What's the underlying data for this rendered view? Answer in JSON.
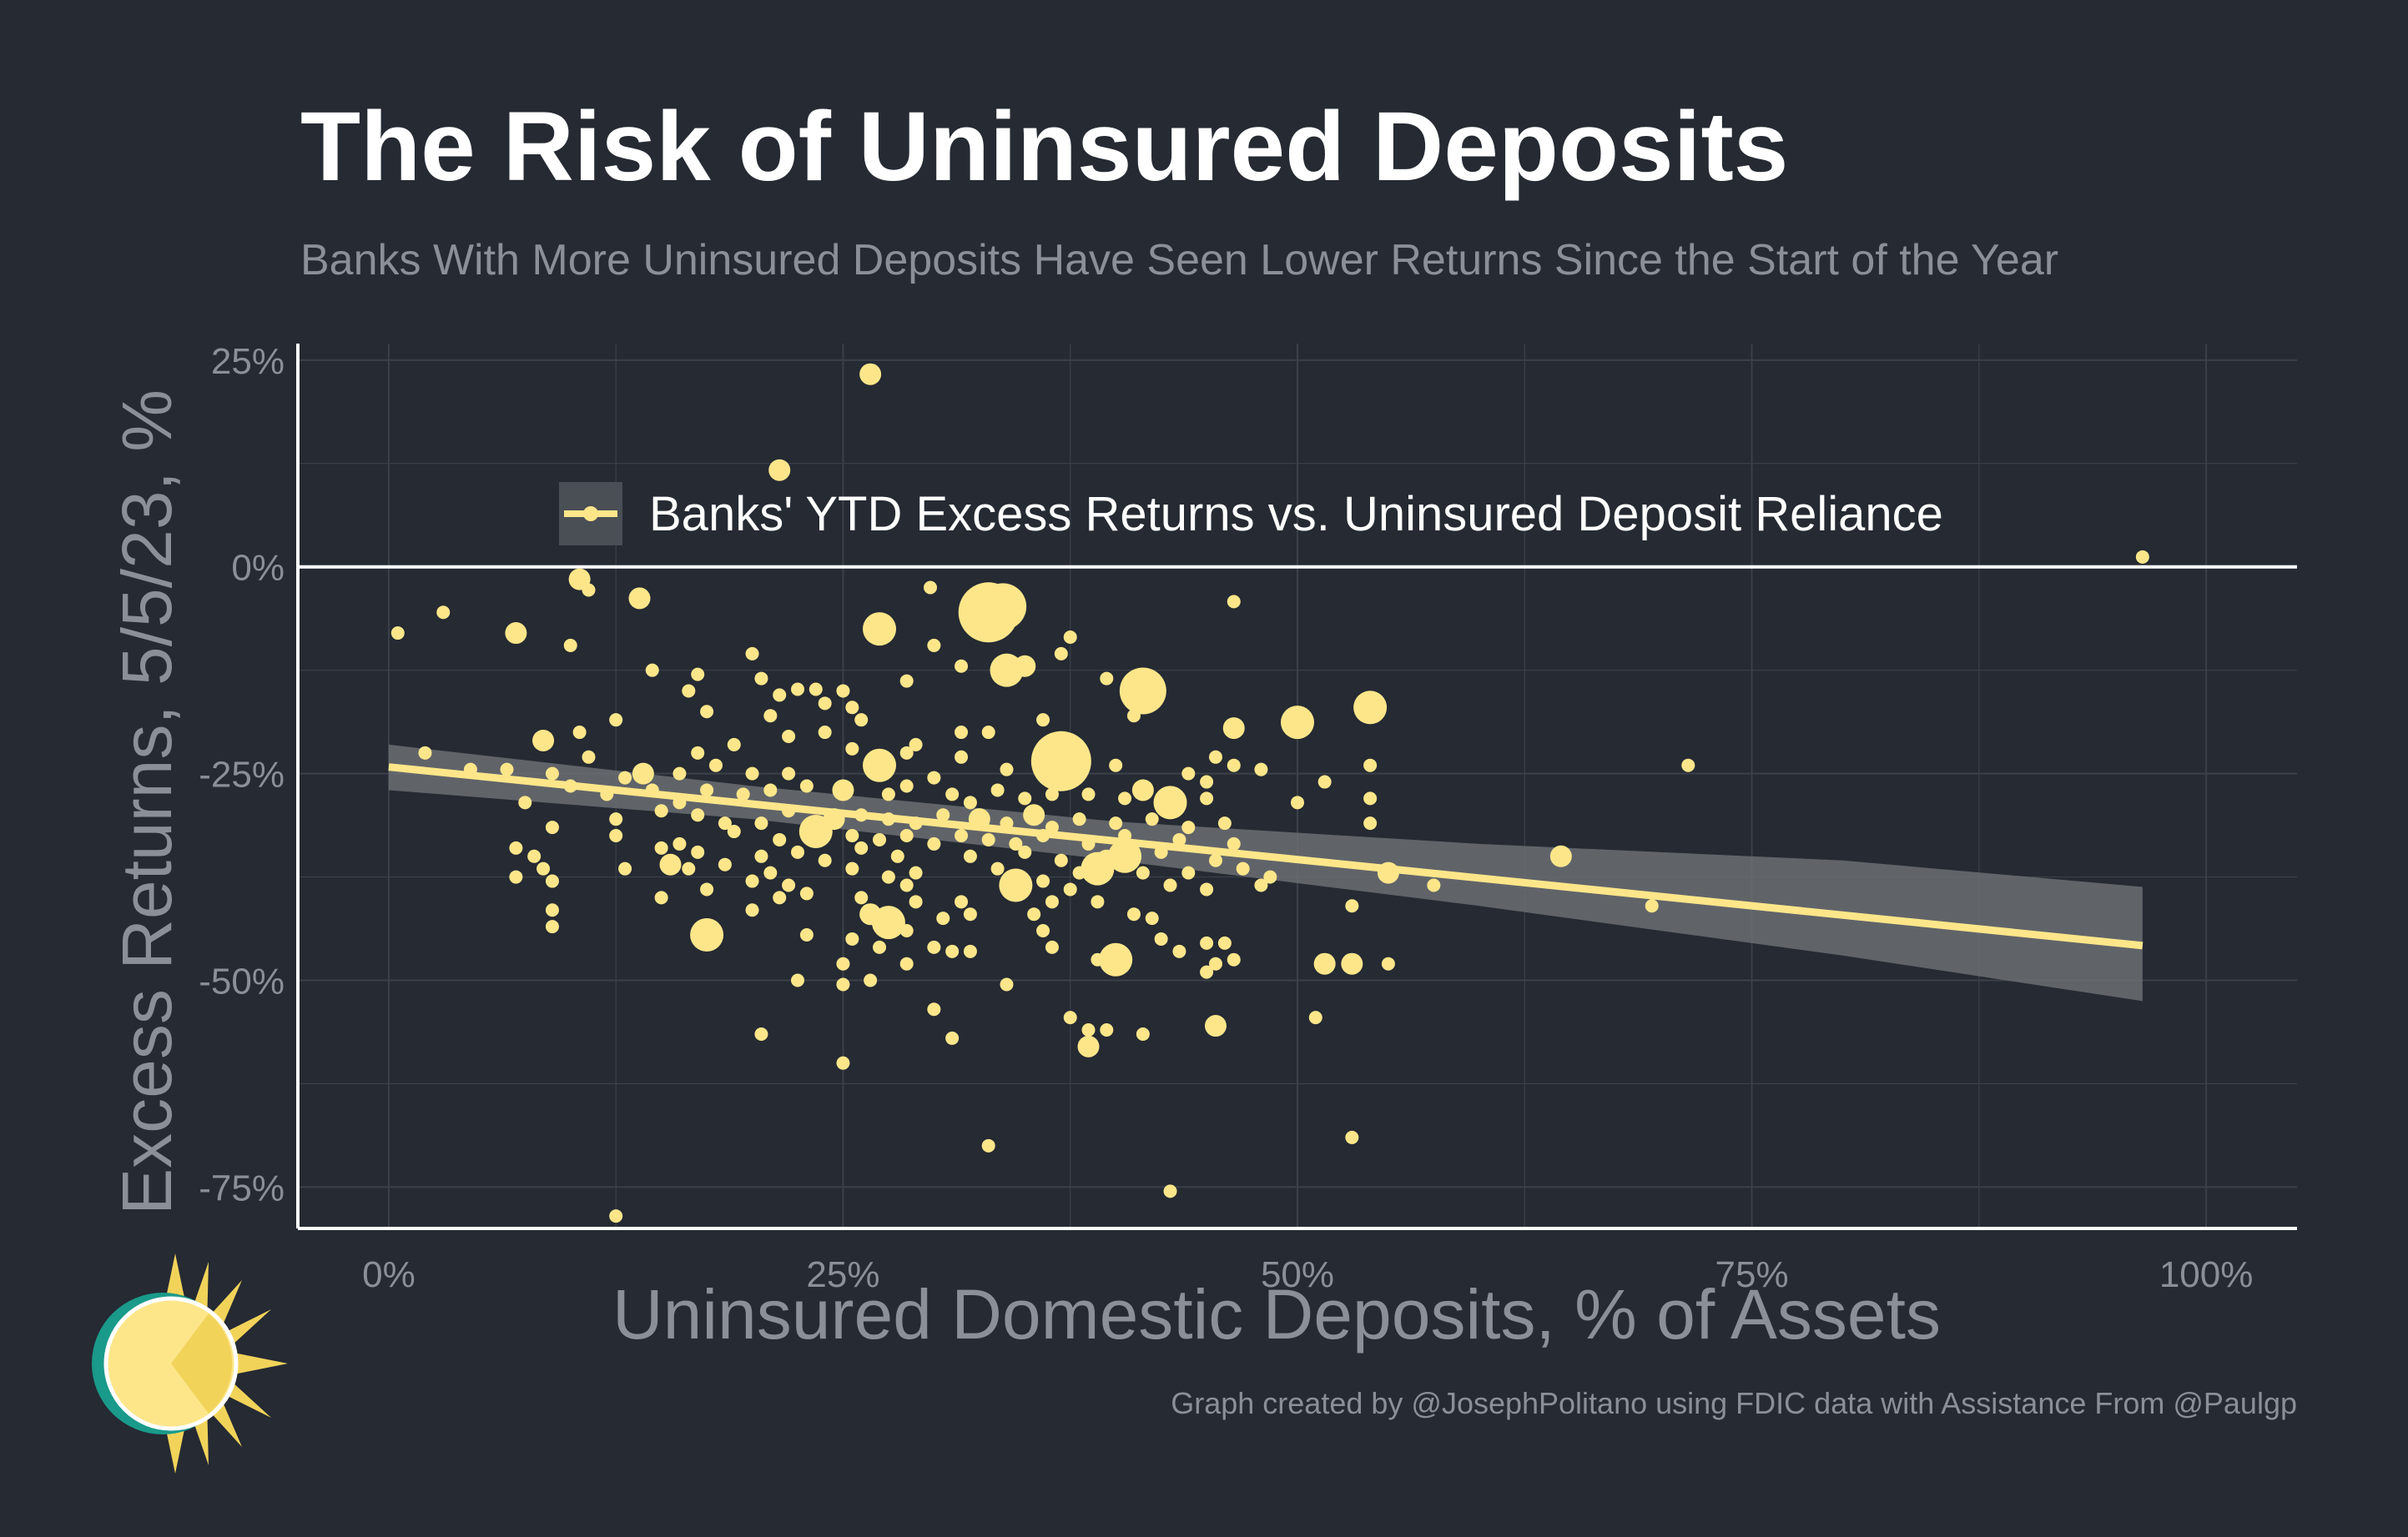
{
  "title": "The Risk of Uninsured Deposits",
  "subtitle": "Banks With More Uninsured Deposits Have Seen Lower Returns Since the Start of the Year",
  "credit": "Graph created by @JosephPolitano using FDIC data with Assistance From @Paulgp",
  "colors": {
    "background": "#252a33",
    "points": "#fde68a",
    "trend": "#fde68a",
    "band": "#6b6e73",
    "axis": "#ffffff",
    "grid": "#3c4149",
    "text_muted": "#8b8f97"
  },
  "chart_data": {
    "type": "scatter",
    "xlabel": "Uninsured Domestic Deposits, % of Assets",
    "ylabel": "Excess Returns, 5/5/23, %",
    "xlim": [
      -5,
      105
    ],
    "ylim": [
      -80,
      27
    ],
    "x_ticks": [
      0,
      25,
      50,
      75,
      100
    ],
    "x_tick_labels": [
      "0%",
      "25%",
      "50%",
      "75%",
      "100%"
    ],
    "y_ticks": [
      25,
      0,
      -25,
      -50,
      -75
    ],
    "y_tick_labels": [
      "25%",
      "0%",
      "-25%",
      "-50%",
      "-75%"
    ],
    "legend": {
      "label": "Banks' YTD Excess Returns vs. Uninsured Deposit Reliance",
      "position": "top-center"
    },
    "trend": {
      "x": [
        0,
        96.5
      ],
      "y": [
        -24.2,
        -45.8
      ]
    },
    "band": {
      "x": [
        0,
        20,
        40,
        60,
        80,
        96.5
      ],
      "upper": [
        -21.5,
        -26.5,
        -30.8,
        -33.5,
        -35.5,
        -38.7
      ],
      "lower": [
        -27.0,
        -30.5,
        -35.5,
        -41.0,
        -47.0,
        -52.5
      ]
    },
    "points": [
      {
        "x": 26.5,
        "y": 23.3,
        "s": 2
      },
      {
        "x": 21.5,
        "y": 11.7,
        "s": 2
      },
      {
        "x": 96.5,
        "y": 1.2,
        "s": 1
      },
      {
        "x": 10.5,
        "y": -1.5,
        "s": 2
      },
      {
        "x": 11.0,
        "y": -2.8,
        "s": 1
      },
      {
        "x": 13.8,
        "y": -3.8,
        "s": 2
      },
      {
        "x": 29.8,
        "y": -2.5,
        "s": 1
      },
      {
        "x": 46.5,
        "y": -4.2,
        "s": 1
      },
      {
        "x": 33.0,
        "y": -5.5,
        "s": 5
      },
      {
        "x": 33.8,
        "y": -4.8,
        "s": 4
      },
      {
        "x": 0.5,
        "y": -8.0,
        "s": 1
      },
      {
        "x": 3.0,
        "y": -5.5,
        "s": 1
      },
      {
        "x": 7.0,
        "y": -8.0,
        "s": 2
      },
      {
        "x": 10.0,
        "y": -9.5,
        "s": 1
      },
      {
        "x": 27.0,
        "y": -7.5,
        "s": 3
      },
      {
        "x": 30.0,
        "y": -9.5,
        "s": 1
      },
      {
        "x": 37.5,
        "y": -8.5,
        "s": 1
      },
      {
        "x": 37.0,
        "y": -10.5,
        "s": 1
      },
      {
        "x": 20.0,
        "y": -10.5,
        "s": 1
      },
      {
        "x": 31.5,
        "y": -12.0,
        "s": 1
      },
      {
        "x": 34.0,
        "y": -12.5,
        "s": 3
      },
      {
        "x": 35.0,
        "y": -12.0,
        "s": 2
      },
      {
        "x": 14.5,
        "y": -12.5,
        "s": 1
      },
      {
        "x": 17.0,
        "y": -13.0,
        "s": 1
      },
      {
        "x": 20.5,
        "y": -13.5,
        "s": 1
      },
      {
        "x": 22.5,
        "y": -14.8,
        "s": 1
      },
      {
        "x": 23.5,
        "y": -14.8,
        "s": 1
      },
      {
        "x": 28.5,
        "y": -13.8,
        "s": 1
      },
      {
        "x": 39.5,
        "y": -13.5,
        "s": 1
      },
      {
        "x": 41.5,
        "y": -15.0,
        "s": 4
      },
      {
        "x": 41.0,
        "y": -18.0,
        "s": 1
      },
      {
        "x": 16.5,
        "y": -15.0,
        "s": 1
      },
      {
        "x": 21.5,
        "y": -15.5,
        "s": 1
      },
      {
        "x": 25.0,
        "y": -15.0,
        "s": 1
      },
      {
        "x": 24.0,
        "y": -16.5,
        "s": 1
      },
      {
        "x": 17.5,
        "y": -17.5,
        "s": 1
      },
      {
        "x": 21.0,
        "y": -18.0,
        "s": 1
      },
      {
        "x": 25.5,
        "y": -17.0,
        "s": 1
      },
      {
        "x": 26.0,
        "y": -18.5,
        "s": 1
      },
      {
        "x": 36.0,
        "y": -18.5,
        "s": 1
      },
      {
        "x": 46.5,
        "y": -19.5,
        "s": 2
      },
      {
        "x": 50.0,
        "y": -18.8,
        "s": 3
      },
      {
        "x": 54.0,
        "y": -17.0,
        "s": 3
      },
      {
        "x": 12.5,
        "y": -18.5,
        "s": 1
      },
      {
        "x": 10.5,
        "y": -20.0,
        "s": 1
      },
      {
        "x": 8.5,
        "y": -21.0,
        "s": 2
      },
      {
        "x": 19.0,
        "y": -21.5,
        "s": 1
      },
      {
        "x": 22.0,
        "y": -20.5,
        "s": 1
      },
      {
        "x": 24.0,
        "y": -20.0,
        "s": 1
      },
      {
        "x": 31.5,
        "y": -20.0,
        "s": 1
      },
      {
        "x": 33.0,
        "y": -20.0,
        "s": 1
      },
      {
        "x": 29.0,
        "y": -21.5,
        "s": 1
      },
      {
        "x": 17.0,
        "y": -22.5,
        "s": 1
      },
      {
        "x": 11.0,
        "y": -23.0,
        "s": 1
      },
      {
        "x": 2.0,
        "y": -22.5,
        "s": 1
      },
      {
        "x": 25.5,
        "y": -22.0,
        "s": 1
      },
      {
        "x": 28.5,
        "y": -22.5,
        "s": 1
      },
      {
        "x": 31.5,
        "y": -23.0,
        "s": 1
      },
      {
        "x": 37.0,
        "y": -23.5,
        "s": 5
      },
      {
        "x": 45.5,
        "y": -23.0,
        "s": 1
      },
      {
        "x": 46.5,
        "y": -24.0,
        "s": 1
      },
      {
        "x": 54.0,
        "y": -24.0,
        "s": 1
      },
      {
        "x": 71.5,
        "y": -24.0,
        "s": 1
      },
      {
        "x": 4.5,
        "y": -24.5,
        "s": 1
      },
      {
        "x": 6.5,
        "y": -24.5,
        "s": 1
      },
      {
        "x": 9.0,
        "y": -25.0,
        "s": 1
      },
      {
        "x": 13.0,
        "y": -25.5,
        "s": 1
      },
      {
        "x": 14.0,
        "y": -25.0,
        "s": 2
      },
      {
        "x": 16.0,
        "y": -25.0,
        "s": 1
      },
      {
        "x": 18.0,
        "y": -24.0,
        "s": 1
      },
      {
        "x": 20.0,
        "y": -25.0,
        "s": 1
      },
      {
        "x": 22.0,
        "y": -25.0,
        "s": 1
      },
      {
        "x": 27.0,
        "y": -24.0,
        "s": 3
      },
      {
        "x": 30.0,
        "y": -25.5,
        "s": 1
      },
      {
        "x": 34.0,
        "y": -24.5,
        "s": 1
      },
      {
        "x": 40.0,
        "y": -24.0,
        "s": 1
      },
      {
        "x": 44.0,
        "y": -25.0,
        "s": 1
      },
      {
        "x": 45.0,
        "y": -26.0,
        "s": 1
      },
      {
        "x": 48.0,
        "y": -24.5,
        "s": 1
      },
      {
        "x": 51.5,
        "y": -26.0,
        "s": 1
      },
      {
        "x": 10.0,
        "y": -26.5,
        "s": 1
      },
      {
        "x": 12.0,
        "y": -27.5,
        "s": 1
      },
      {
        "x": 14.5,
        "y": -27.0,
        "s": 1
      },
      {
        "x": 16.0,
        "y": -28.5,
        "s": 1
      },
      {
        "x": 17.5,
        "y": -27.0,
        "s": 1
      },
      {
        "x": 19.5,
        "y": -27.5,
        "s": 1
      },
      {
        "x": 21.0,
        "y": -27.0,
        "s": 1
      },
      {
        "x": 23.0,
        "y": -26.5,
        "s": 1
      },
      {
        "x": 25.0,
        "y": -27.0,
        "s": 2
      },
      {
        "x": 27.5,
        "y": -27.5,
        "s": 1
      },
      {
        "x": 28.5,
        "y": -26.5,
        "s": 1
      },
      {
        "x": 31.0,
        "y": -27.5,
        "s": 1
      },
      {
        "x": 32.0,
        "y": -28.5,
        "s": 1
      },
      {
        "x": 33.5,
        "y": -27.0,
        "s": 1
      },
      {
        "x": 35.0,
        "y": -28.0,
        "s": 1
      },
      {
        "x": 36.5,
        "y": -27.5,
        "s": 1
      },
      {
        "x": 38.5,
        "y": -27.5,
        "s": 1
      },
      {
        "x": 40.5,
        "y": -28.0,
        "s": 1
      },
      {
        "x": 41.5,
        "y": -27.0,
        "s": 2
      },
      {
        "x": 43.0,
        "y": -28.5,
        "s": 3
      },
      {
        "x": 45.0,
        "y": -28.0,
        "s": 1
      },
      {
        "x": 50.0,
        "y": -28.5,
        "s": 1
      },
      {
        "x": 54.0,
        "y": -28.0,
        "s": 1
      },
      {
        "x": 7.5,
        "y": -28.5,
        "s": 1
      },
      {
        "x": 9.0,
        "y": -31.5,
        "s": 1
      },
      {
        "x": 12.5,
        "y": -30.5,
        "s": 1
      },
      {
        "x": 15.0,
        "y": -29.5,
        "s": 1
      },
      {
        "x": 17.0,
        "y": -30.0,
        "s": 1
      },
      {
        "x": 18.5,
        "y": -31.0,
        "s": 1
      },
      {
        "x": 20.5,
        "y": -31.0,
        "s": 1
      },
      {
        "x": 22.0,
        "y": -29.5,
        "s": 1
      },
      {
        "x": 24.5,
        "y": -30.5,
        "s": 2
      },
      {
        "x": 26.0,
        "y": -30.0,
        "s": 1
      },
      {
        "x": 27.5,
        "y": -30.5,
        "s": 1
      },
      {
        "x": 29.0,
        "y": -31.0,
        "s": 1
      },
      {
        "x": 30.5,
        "y": -30.0,
        "s": 1
      },
      {
        "x": 32.5,
        "y": -30.5,
        "s": 2
      },
      {
        "x": 34.0,
        "y": -31.0,
        "s": 1
      },
      {
        "x": 35.5,
        "y": -30.0,
        "s": 2
      },
      {
        "x": 36.5,
        "y": -31.5,
        "s": 1
      },
      {
        "x": 38.0,
        "y": -30.5,
        "s": 1
      },
      {
        "x": 40.0,
        "y": -31.0,
        "s": 1
      },
      {
        "x": 42.0,
        "y": -30.5,
        "s": 1
      },
      {
        "x": 44.0,
        "y": -31.5,
        "s": 1
      },
      {
        "x": 46.0,
        "y": -31.0,
        "s": 1
      },
      {
        "x": 54.0,
        "y": -31.0,
        "s": 1
      },
      {
        "x": 12.5,
        "y": -32.5,
        "s": 1
      },
      {
        "x": 16.0,
        "y": -33.5,
        "s": 1
      },
      {
        "x": 19.0,
        "y": -32.0,
        "s": 1
      },
      {
        "x": 21.5,
        "y": -33.0,
        "s": 1
      },
      {
        "x": 23.5,
        "y": -32.0,
        "s": 3
      },
      {
        "x": 25.5,
        "y": -32.5,
        "s": 1
      },
      {
        "x": 27.0,
        "y": -33.0,
        "s": 1
      },
      {
        "x": 28.5,
        "y": -32.5,
        "s": 1
      },
      {
        "x": 30.0,
        "y": -33.5,
        "s": 1
      },
      {
        "x": 31.5,
        "y": -32.5,
        "s": 1
      },
      {
        "x": 33.0,
        "y": -33.0,
        "s": 1
      },
      {
        "x": 34.5,
        "y": -33.5,
        "s": 1
      },
      {
        "x": 36.0,
        "y": -32.5,
        "s": 1
      },
      {
        "x": 38.5,
        "y": -33.5,
        "s": 1
      },
      {
        "x": 40.5,
        "y": -32.5,
        "s": 1
      },
      {
        "x": 43.5,
        "y": -33.0,
        "s": 1
      },
      {
        "x": 46.5,
        "y": -33.5,
        "s": 1
      },
      {
        "x": 7.0,
        "y": -34.0,
        "s": 1
      },
      {
        "x": 8.0,
        "y": -35.0,
        "s": 1
      },
      {
        "x": 15.0,
        "y": -34.0,
        "s": 1
      },
      {
        "x": 17.0,
        "y": -34.5,
        "s": 1
      },
      {
        "x": 20.5,
        "y": -35.0,
        "s": 1
      },
      {
        "x": 22.5,
        "y": -34.5,
        "s": 1
      },
      {
        "x": 24.0,
        "y": -35.5,
        "s": 1
      },
      {
        "x": 26.0,
        "y": -34.0,
        "s": 1
      },
      {
        "x": 28.0,
        "y": -35.0,
        "s": 1
      },
      {
        "x": 32.0,
        "y": -35.0,
        "s": 1
      },
      {
        "x": 35.0,
        "y": -34.5,
        "s": 1
      },
      {
        "x": 37.0,
        "y": -35.5,
        "s": 1
      },
      {
        "x": 39.5,
        "y": -35.5,
        "s": 2
      },
      {
        "x": 40.5,
        "y": -35.0,
        "s": 3
      },
      {
        "x": 42.5,
        "y": -34.5,
        "s": 1
      },
      {
        "x": 45.5,
        "y": -35.5,
        "s": 1
      },
      {
        "x": 47.0,
        "y": -36.5,
        "s": 1
      },
      {
        "x": 64.5,
        "y": -35.0,
        "s": 2
      },
      {
        "x": 15.5,
        "y": -36.0,
        "s": 2
      },
      {
        "x": 8.5,
        "y": -36.5,
        "s": 1
      },
      {
        "x": 13.0,
        "y": -36.5,
        "s": 1
      },
      {
        "x": 16.5,
        "y": -36.5,
        "s": 1
      },
      {
        "x": 18.5,
        "y": -36.0,
        "s": 1
      },
      {
        "x": 21.0,
        "y": -37.0,
        "s": 1
      },
      {
        "x": 25.5,
        "y": -36.5,
        "s": 1
      },
      {
        "x": 29.0,
        "y": -37.0,
        "s": 1
      },
      {
        "x": 33.5,
        "y": -36.5,
        "s": 1
      },
      {
        "x": 38.0,
        "y": -37.0,
        "s": 1
      },
      {
        "x": 39.0,
        "y": -36.5,
        "s": 3
      },
      {
        "x": 41.5,
        "y": -37.0,
        "s": 1
      },
      {
        "x": 44.0,
        "y": -37.0,
        "s": 1
      },
      {
        "x": 48.5,
        "y": -37.5,
        "s": 1
      },
      {
        "x": 55.0,
        "y": -37.0,
        "s": 2
      },
      {
        "x": 7.0,
        "y": -37.5,
        "s": 1
      },
      {
        "x": 20.0,
        "y": -38.0,
        "s": 1
      },
      {
        "x": 22.0,
        "y": -38.5,
        "s": 1
      },
      {
        "x": 27.5,
        "y": -37.5,
        "s": 1
      },
      {
        "x": 28.5,
        "y": -38.5,
        "s": 1
      },
      {
        "x": 34.5,
        "y": -38.5,
        "s": 3
      },
      {
        "x": 36.0,
        "y": -38.0,
        "s": 1
      },
      {
        "x": 37.5,
        "y": -39.0,
        "s": 1
      },
      {
        "x": 43.0,
        "y": -38.5,
        "s": 1
      },
      {
        "x": 45.0,
        "y": -39.0,
        "s": 1
      },
      {
        "x": 48.0,
        "y": -38.5,
        "s": 1
      },
      {
        "x": 57.5,
        "y": -38.5,
        "s": 1
      },
      {
        "x": 9.0,
        "y": -38.0,
        "s": 1
      },
      {
        "x": 15.0,
        "y": -40.0,
        "s": 1
      },
      {
        "x": 17.5,
        "y": -39.0,
        "s": 1
      },
      {
        "x": 21.5,
        "y": -40.0,
        "s": 1
      },
      {
        "x": 23.0,
        "y": -39.5,
        "s": 1
      },
      {
        "x": 26.0,
        "y": -40.0,
        "s": 1
      },
      {
        "x": 29.0,
        "y": -40.5,
        "s": 1
      },
      {
        "x": 31.5,
        "y": -40.5,
        "s": 1
      },
      {
        "x": 36.5,
        "y": -40.5,
        "s": 1
      },
      {
        "x": 39.0,
        "y": -40.5,
        "s": 1
      },
      {
        "x": 53.0,
        "y": -41.0,
        "s": 1
      },
      {
        "x": 69.5,
        "y": -41.0,
        "s": 1
      },
      {
        "x": 9.0,
        "y": -41.5,
        "s": 1
      },
      {
        "x": 20.0,
        "y": -41.5,
        "s": 1
      },
      {
        "x": 26.5,
        "y": -42.0,
        "s": 2
      },
      {
        "x": 27.5,
        "y": -43.0,
        "s": 3
      },
      {
        "x": 30.5,
        "y": -42.5,
        "s": 1
      },
      {
        "x": 32.0,
        "y": -42.0,
        "s": 1
      },
      {
        "x": 35.5,
        "y": -42.0,
        "s": 1
      },
      {
        "x": 41.0,
        "y": -42.0,
        "s": 1
      },
      {
        "x": 42.0,
        "y": -42.5,
        "s": 1
      },
      {
        "x": 9.0,
        "y": -43.5,
        "s": 1
      },
      {
        "x": 17.5,
        "y": -44.5,
        "s": 3
      },
      {
        "x": 23.0,
        "y": -44.5,
        "s": 1
      },
      {
        "x": 25.5,
        "y": -45.0,
        "s": 1
      },
      {
        "x": 28.5,
        "y": -44.0,
        "s": 1
      },
      {
        "x": 36.0,
        "y": -44.0,
        "s": 1
      },
      {
        "x": 42.5,
        "y": -45.0,
        "s": 1
      },
      {
        "x": 45.0,
        "y": -45.5,
        "s": 1
      },
      {
        "x": 46.0,
        "y": -45.5,
        "s": 1
      },
      {
        "x": 27.0,
        "y": -46.0,
        "s": 1
      },
      {
        "x": 30.0,
        "y": -46.0,
        "s": 1
      },
      {
        "x": 31.0,
        "y": -46.5,
        "s": 1
      },
      {
        "x": 32.0,
        "y": -46.5,
        "s": 1
      },
      {
        "x": 36.5,
        "y": -46.0,
        "s": 1
      },
      {
        "x": 43.5,
        "y": -46.5,
        "s": 1
      },
      {
        "x": 40.0,
        "y": -47.5,
        "s": 3
      },
      {
        "x": 39.0,
        "y": -47.5,
        "s": 1
      },
      {
        "x": 45.5,
        "y": -48.0,
        "s": 1
      },
      {
        "x": 46.5,
        "y": -47.5,
        "s": 1
      },
      {
        "x": 51.5,
        "y": -48.0,
        "s": 2
      },
      {
        "x": 53.0,
        "y": -48.0,
        "s": 2
      },
      {
        "x": 55.0,
        "y": -48.0,
        "s": 1
      },
      {
        "x": 25.0,
        "y": -48.0,
        "s": 1
      },
      {
        "x": 28.5,
        "y": -48.0,
        "s": 1
      },
      {
        "x": 45.0,
        "y": -49.0,
        "s": 1
      },
      {
        "x": 22.5,
        "y": -50.0,
        "s": 1
      },
      {
        "x": 25.0,
        "y": -50.5,
        "s": 1
      },
      {
        "x": 26.5,
        "y": -50.0,
        "s": 1
      },
      {
        "x": 34.0,
        "y": -50.5,
        "s": 1
      },
      {
        "x": 30.0,
        "y": -53.5,
        "s": 1
      },
      {
        "x": 37.5,
        "y": -54.5,
        "s": 1
      },
      {
        "x": 38.5,
        "y": -56.0,
        "s": 1
      },
      {
        "x": 39.5,
        "y": -56.0,
        "s": 1
      },
      {
        "x": 45.5,
        "y": -55.5,
        "s": 2
      },
      {
        "x": 51.0,
        "y": -54.5,
        "s": 1
      },
      {
        "x": 41.5,
        "y": -56.5,
        "s": 1
      },
      {
        "x": 20.5,
        "y": -56.5,
        "s": 1
      },
      {
        "x": 31.0,
        "y": -57.0,
        "s": 1
      },
      {
        "x": 38.5,
        "y": -58.0,
        "s": 2
      },
      {
        "x": 25.0,
        "y": -60.0,
        "s": 1
      },
      {
        "x": 33.0,
        "y": -70.0,
        "s": 1
      },
      {
        "x": 53.0,
        "y": -69.0,
        "s": 1
      },
      {
        "x": 43.0,
        "y": -75.5,
        "s": 1
      },
      {
        "x": 12.5,
        "y": -78.5,
        "s": 1
      }
    ]
  }
}
